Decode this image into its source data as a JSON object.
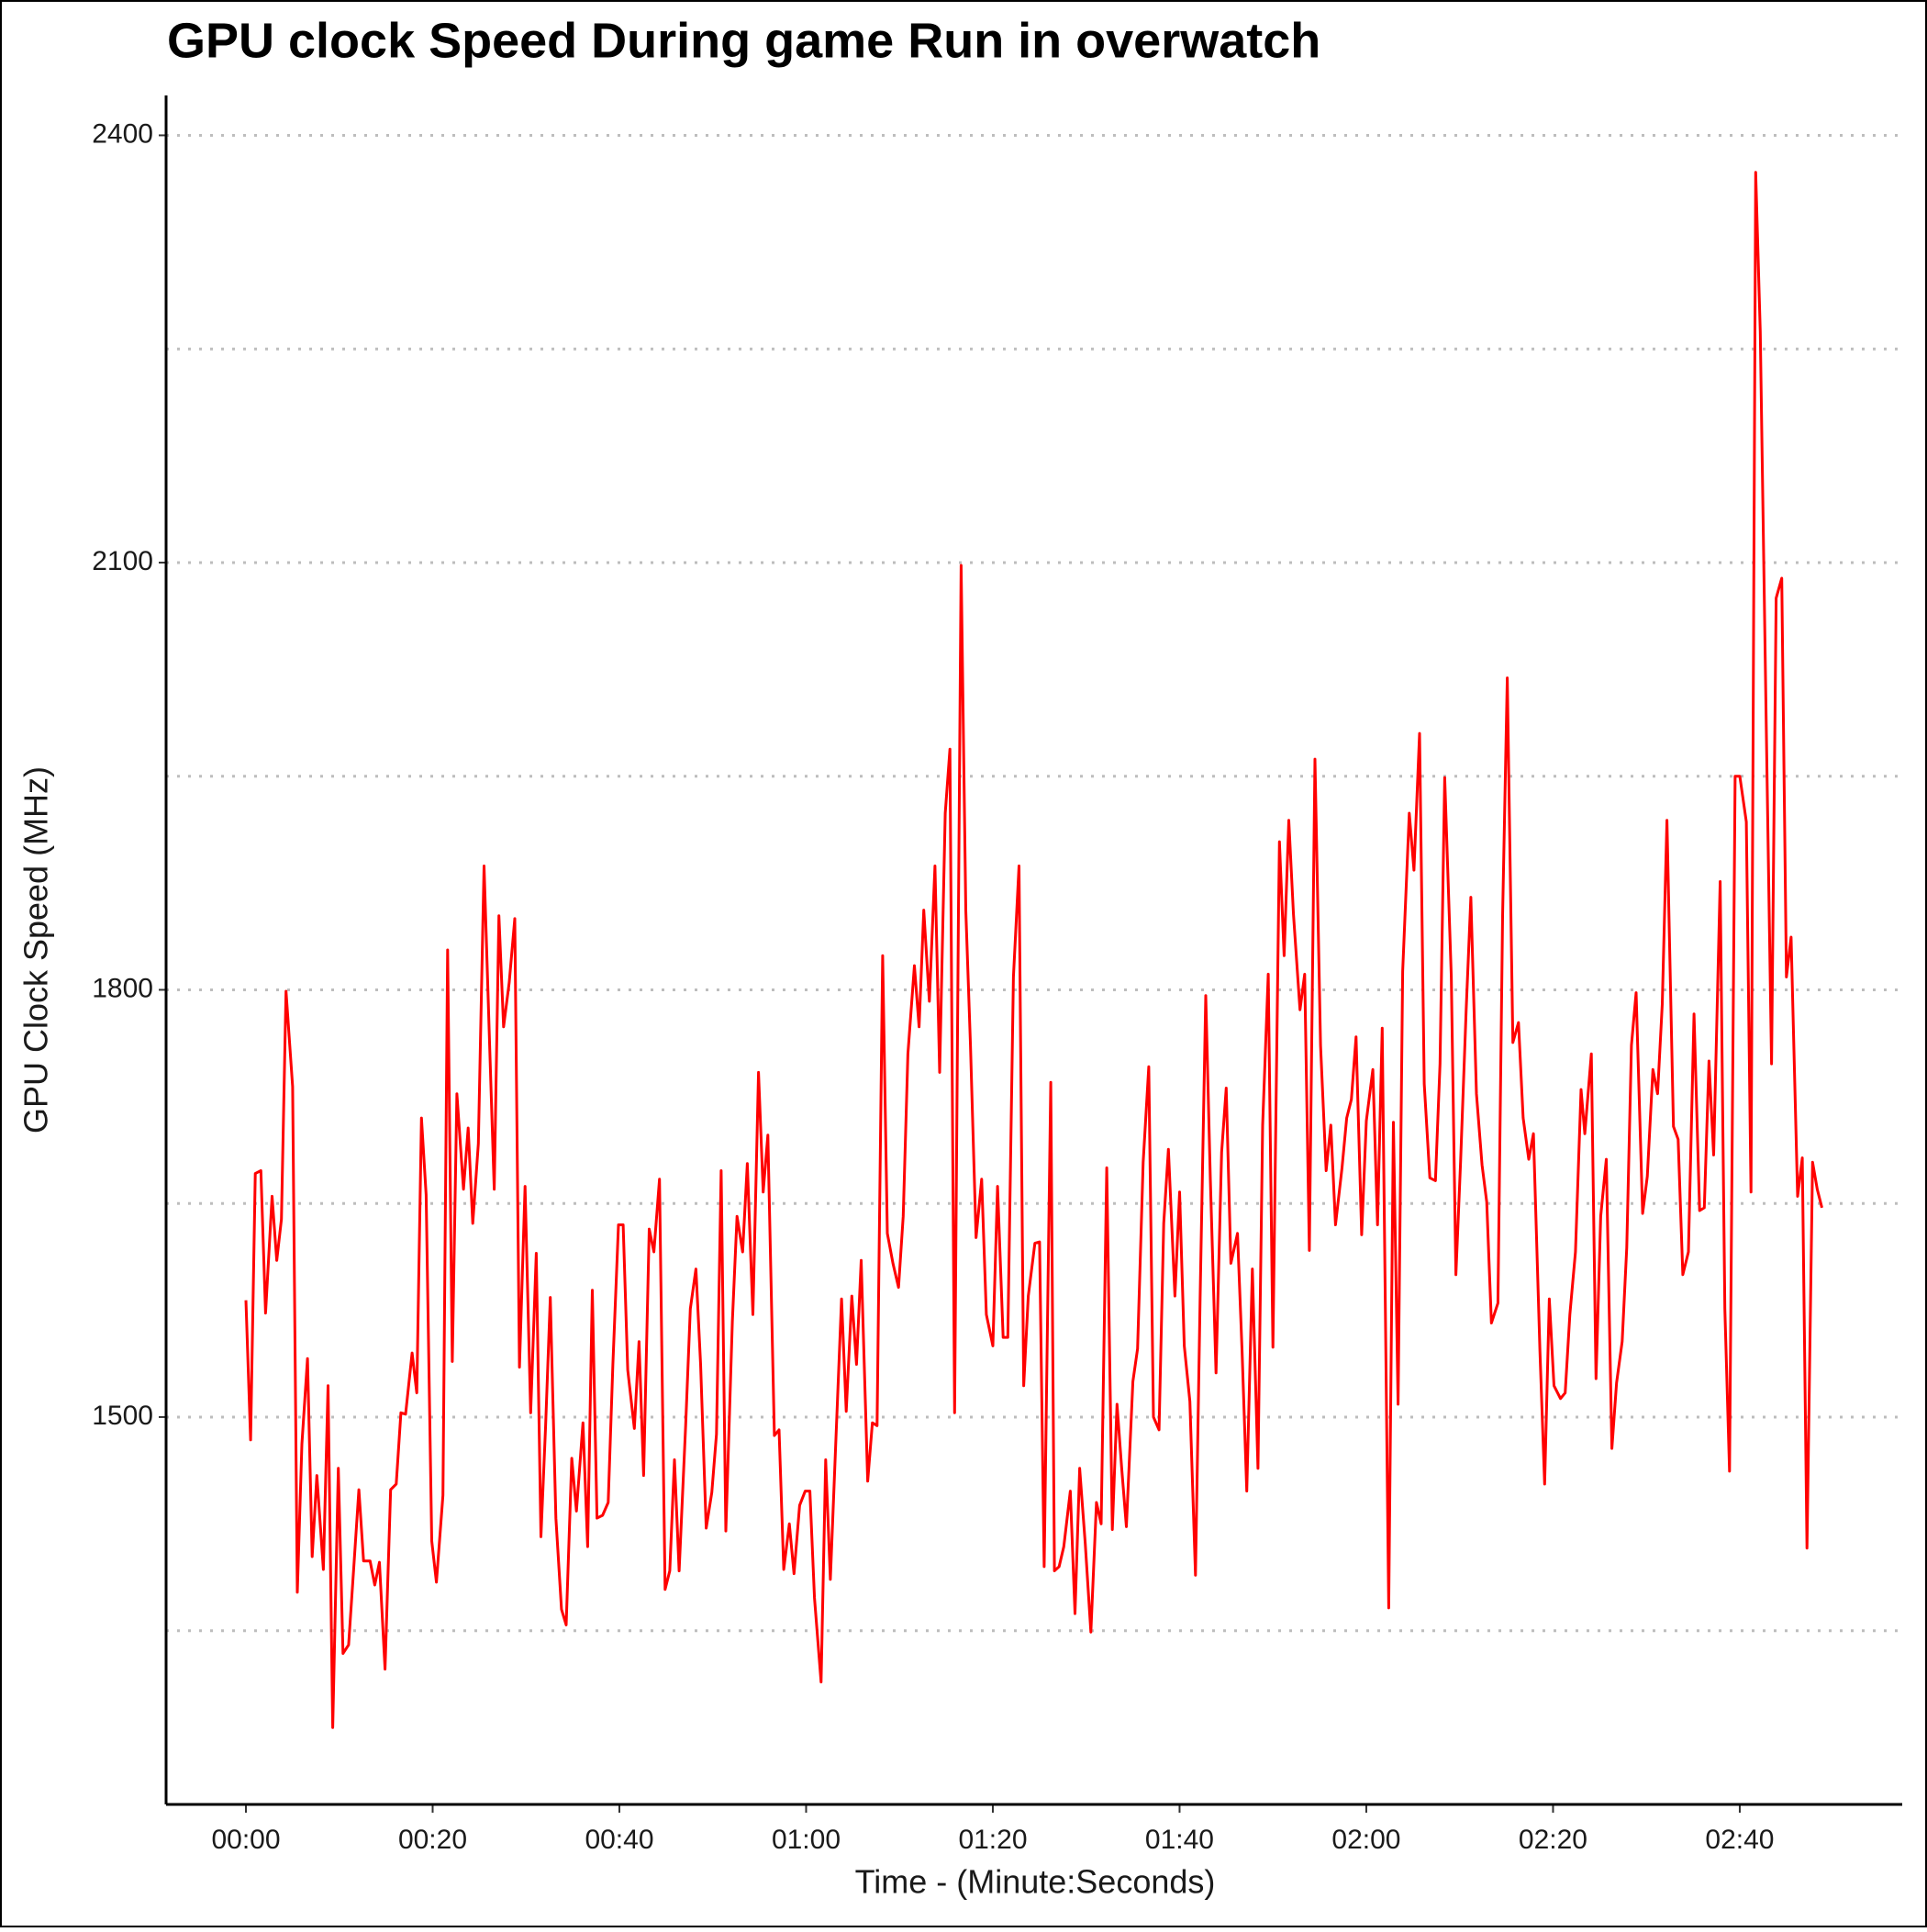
{
  "chart_data": {
    "type": "line",
    "title": "GPU clock Speed During game Run in overwatch",
    "x_label": "Time - (Minute:Seconds)",
    "y_label": "GPU Clock Speed (MHz)",
    "color": "#ff0000",
    "grid": true,
    "xlim": [
      -8.55,
      177.4
    ],
    "ylim": [
      1228,
      2428
    ],
    "xticks": [
      {
        "value": 0,
        "label": "00:00"
      },
      {
        "value": 20,
        "label": "00:20"
      },
      {
        "value": 40,
        "label": "00:40"
      },
      {
        "value": 60,
        "label": "01:00"
      },
      {
        "value": 80,
        "label": "01:20"
      },
      {
        "value": 100,
        "label": "01:40"
      },
      {
        "value": 120,
        "label": "02:00"
      },
      {
        "value": 140,
        "label": "02:20"
      },
      {
        "value": 160,
        "label": "02:40"
      }
    ],
    "yticks": [
      1500,
      1800,
      2100,
      2400
    ],
    "y_minor_gridlines": [
      1350,
      1650,
      1950,
      2250
    ],
    "x": [
      0,
      0.5,
      1,
      1.6,
      2.1,
      2.8,
      3.3,
      3.8,
      4.3,
      5,
      5.5,
      6,
      6.6,
      7.1,
      7.6,
      8.3,
      8.8,
      9.3,
      9.9,
      10.4,
      11,
      11.6,
      12.1,
      12.6,
      13.3,
      13.8,
      14.3,
      14.9,
      15.5,
      16.1,
      16.6,
      17.1,
      17.8,
      18.3,
      18.8,
      19.3,
      19.9,
      20.4,
      21.1,
      21.6,
      22.1,
      22.6,
      23.3,
      23.8,
      24.3,
      24.9,
      25.5,
      26.1,
      26.6,
      27.1,
      27.6,
      28.2,
      28.8,
      29.3,
      29.9,
      30.5,
      31.1,
      31.6,
      32.1,
      32.6,
      33.2,
      33.8,
      34.3,
      34.9,
      35.4,
      36.1,
      36.6,
      37.1,
      37.6,
      38.2,
      38.8,
      39.3,
      39.9,
      40.4,
      40.9,
      41.6,
      42.1,
      42.6,
      43.2,
      43.7,
      44.3,
      44.9,
      45.4,
      45.9,
      46.4,
      47.1,
      47.6,
      48.2,
      48.7,
      49.3,
      49.9,
      50.4,
      50.9,
      51.4,
      52.1,
      52.6,
      53.2,
      53.7,
      54.3,
      54.9,
      55.4,
      55.9,
      56.6,
      57.1,
      57.6,
      58.2,
      58.7,
      59.3,
      59.9,
      60.4,
      60.9,
      61.6,
      62.1,
      62.6,
      63.2,
      63.8,
      64.3,
      64.9,
      65.4,
      65.9,
      66.6,
      67.1,
      67.6,
      68.2,
      68.7,
      69.3,
      69.9,
      70.4,
      70.9,
      71.6,
      72.1,
      72.6,
      73.2,
      73.8,
      74.3,
      74.9,
      75.4,
      75.9,
      76.6,
      77.1,
      77.6,
      78.2,
      78.8,
      79.3,
      80,
      80.5,
      81.1,
      81.6,
      82.2,
      82.8,
      83.3,
      83.8,
      84.5,
      85,
      85.5,
      86.2,
      86.6,
      87.1,
      87.6,
      88.3,
      88.8,
      89.3,
      89.9,
      90.5,
      91.1,
      91.6,
      92.2,
      92.8,
      93.3,
      93.8,
      94.3,
      95,
      95.5,
      96.1,
      96.7,
      97.2,
      97.8,
      98.3,
      98.8,
      99.5,
      100,
      100.5,
      101.1,
      101.7,
      102.2,
      102.8,
      103.3,
      103.9,
      104.5,
      105,
      105.5,
      106.2,
      106.7,
      107.2,
      107.8,
      108.4,
      108.9,
      109.5,
      110,
      110.7,
      111.2,
      111.7,
      112.2,
      112.9,
      113.4,
      113.9,
      114.5,
      115.1,
      115.7,
      116.2,
      116.7,
      117.4,
      117.9,
      118.4,
      118.9,
      119.5,
      120,
      120.7,
      121.2,
      121.7,
      122.4,
      122.9,
      123.4,
      123.9,
      124.6,
      125.1,
      125.7,
      126.2,
      126.8,
      127.4,
      127.9,
      128.4,
      129.1,
      129.6,
      130.1,
      130.7,
      131.2,
      131.8,
      132.4,
      132.9,
      133.4,
      134.1,
      134.6,
      135.1,
      135.7,
      136.3,
      136.8,
      137.4,
      137.9,
      138.6,
      139.1,
      139.6,
      140.1,
      140.8,
      141.3,
      141.8,
      142.4,
      143,
      143.4,
      144.1,
      144.6,
      145.1,
      145.7,
      146.3,
      146.8,
      147.4,
      147.9,
      148.4,
      148.9,
      149.6,
      150.1,
      150.7,
      151.2,
      151.7,
      152.2,
      152.9,
      153.4,
      153.9,
      154.5,
      155.1,
      155.7,
      156.2,
      156.7,
      157.2,
      157.9,
      158.4,
      158.9,
      159.5,
      160,
      160.7,
      161.2,
      161.7,
      162.2,
      162.8,
      163.4,
      163.9,
      164.5,
      165,
      165.5,
      166.2,
      166.7,
      167.2,
      167.8,
      168.3,
      168.8
    ],
    "values": [
      1582,
      1484,
      1671,
      1673,
      1573,
      1655,
      1610,
      1639,
      1799,
      1732,
      1377,
      1481,
      1541,
      1402,
      1459,
      1393,
      1522,
      1282,
      1464,
      1334,
      1340,
      1399,
      1449,
      1399,
      1399,
      1382,
      1398,
      1323,
      1449,
      1453,
      1503,
      1502,
      1545,
      1517,
      1710,
      1656,
      1413,
      1384,
      1445,
      1828,
      1539,
      1727,
      1660,
      1703,
      1636,
      1692,
      1887,
      1761,
      1660,
      1852,
      1774,
      1805,
      1850,
      1535,
      1662,
      1503,
      1615,
      1416,
      1494,
      1584,
      1429,
      1365,
      1354,
      1471,
      1434,
      1496,
      1409,
      1589,
      1429,
      1431,
      1440,
      1537,
      1635,
      1635,
      1533,
      1492,
      1553,
      1459,
      1632,
      1616,
      1667,
      1379,
      1392,
      1470,
      1392,
      1494,
      1576,
      1604,
      1537,
      1422,
      1447,
      1488,
      1673,
      1420,
      1567,
      1641,
      1616,
      1678,
      1572,
      1742,
      1658,
      1698,
      1487,
      1491,
      1393,
      1425,
      1390,
      1438,
      1448,
      1448,
      1373,
      1314,
      1470,
      1386,
      1485,
      1583,
      1504,
      1585,
      1537,
      1610,
      1455,
      1496,
      1494,
      1824,
      1629,
      1608,
      1591,
      1641,
      1755,
      1817,
      1774,
      1856,
      1792,
      1887,
      1742,
      1924,
      1969,
      1503,
      2098,
      1856,
      1761,
      1626,
      1667,
      1572,
      1550,
      1662,
      1556,
      1556,
      1809,
      1887,
      1522,
      1585,
      1622,
      1623,
      1395,
      1735,
      1392,
      1395,
      1409,
      1448,
      1362,
      1464,
      1411,
      1349,
      1440,
      1425,
      1675,
      1421,
      1509,
      1464,
      1423,
      1525,
      1548,
      1679,
      1746,
      1500,
      1491,
      1636,
      1688,
      1585,
      1658,
      1550,
      1511,
      1389,
      1585,
      1796,
      1667,
      1531,
      1686,
      1731,
      1608,
      1629,
      1546,
      1448,
      1604,
      1464,
      1705,
      1811,
      1549,
      1904,
      1824,
      1919,
      1853,
      1786,
      1811,
      1617,
      1962,
      1761,
      1673,
      1705,
      1635,
      1675,
      1710,
      1723,
      1767,
      1628,
      1708,
      1744,
      1635,
      1773,
      1366,
      1707,
      1509,
      1813,
      1924,
      1884,
      1980,
      1734,
      1668,
      1666,
      1748,
      1949,
      1809,
      1600,
      1679,
      1786,
      1865,
      1727,
      1677,
      1651,
      1566,
      1580,
      1852,
      2019,
      1763,
      1777,
      1710,
      1681,
      1699,
      1546,
      1453,
      1583,
      1522,
      1513,
      1517,
      1572,
      1616,
      1730,
      1699,
      1755,
      1527,
      1641,
      1681,
      1478,
      1524,
      1553,
      1619,
      1761,
      1798,
      1643,
      1669,
      1744,
      1727,
      1790,
      1919,
      1704,
      1695,
      1600,
      1616,
      1783,
      1645,
      1647,
      1750,
      1684,
      1876,
      1576,
      1462,
      1950,
      1950,
      1918,
      1658,
      2374,
      2262,
      2003,
      1748,
      2075,
      2089,
      1809,
      1837,
      1655,
      1682,
      1408,
      1679,
      1660,
      1647
    ]
  }
}
